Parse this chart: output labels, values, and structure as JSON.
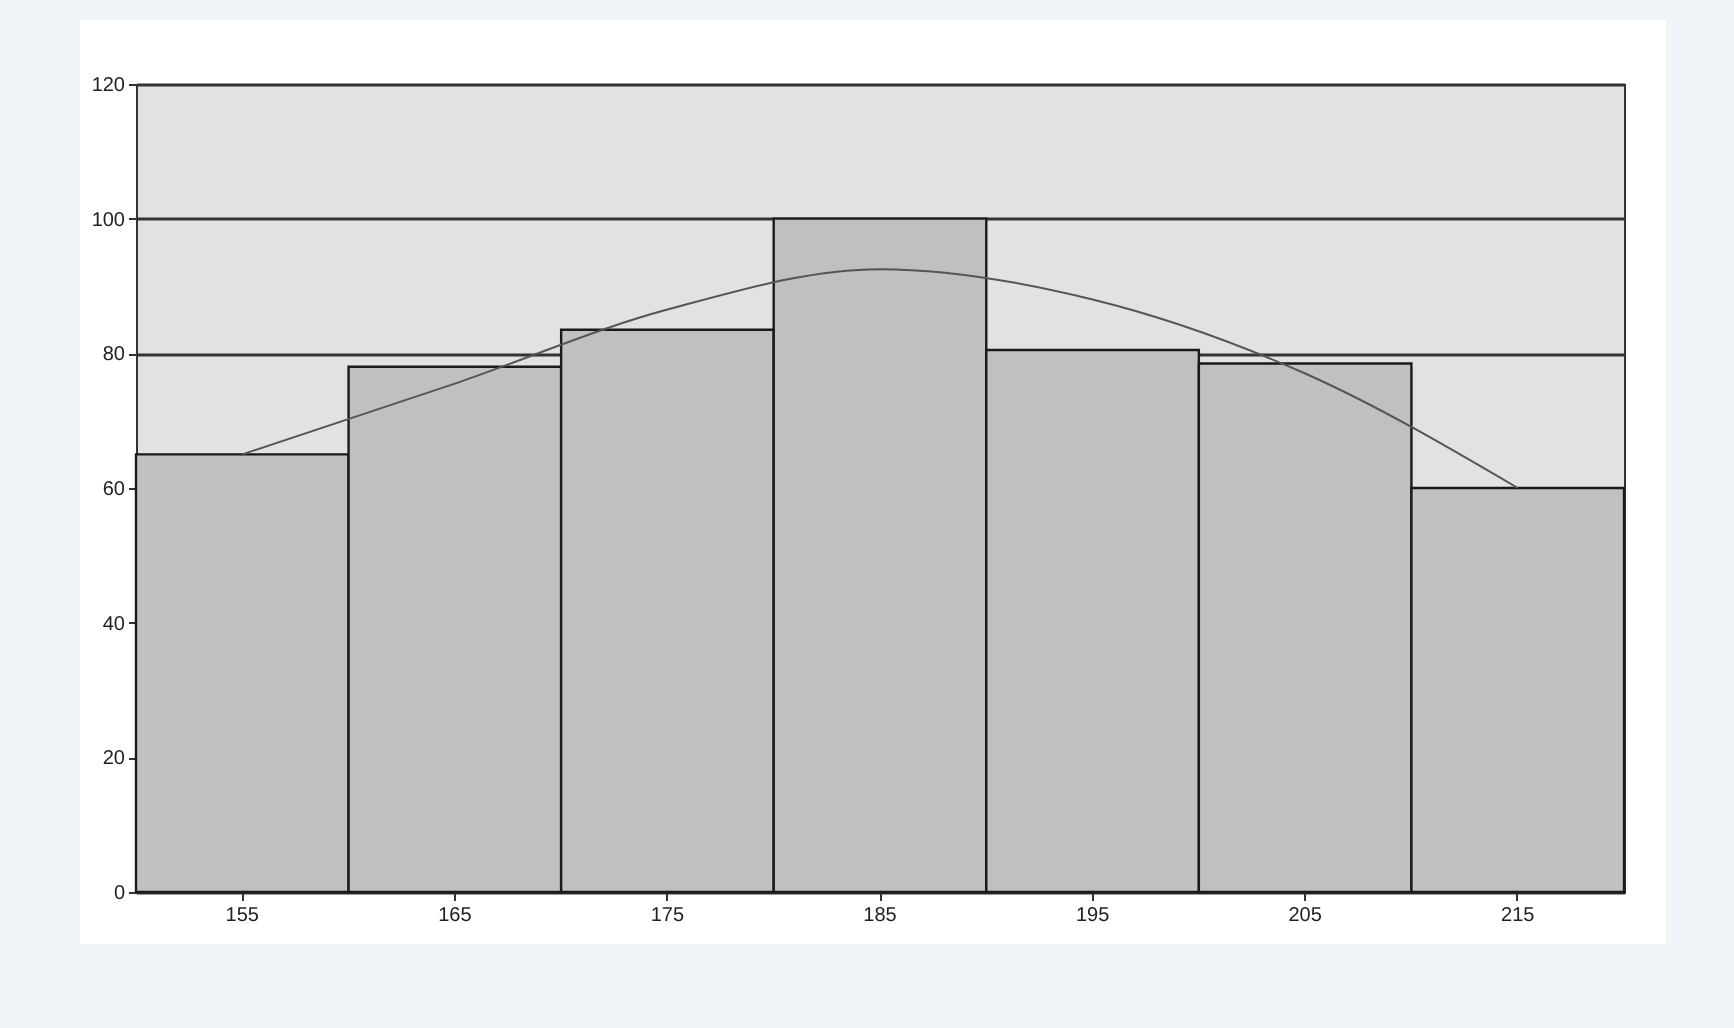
{
  "chart_data": {
    "type": "bar",
    "categories": [
      "155",
      "165",
      "175",
      "185",
      "195",
      "205",
      "215"
    ],
    "series": [
      {
        "color": "#c0c0c0",
        "values": [
          65,
          78,
          83.5,
          100,
          80.5,
          78.5,
          60
        ]
      },
      {
        "type": "line",
        "color": "#555555",
        "values": [
          65,
          75.5,
          86.5,
          92.5,
          88,
          77,
          60
        ]
      }
    ],
    "ylim": [
      0,
      120
    ],
    "yticks": [
      0,
      20,
      40,
      60,
      80,
      100,
      120
    ],
    "grid": "y",
    "marker": "none",
    "line_style": "solid"
  }
}
